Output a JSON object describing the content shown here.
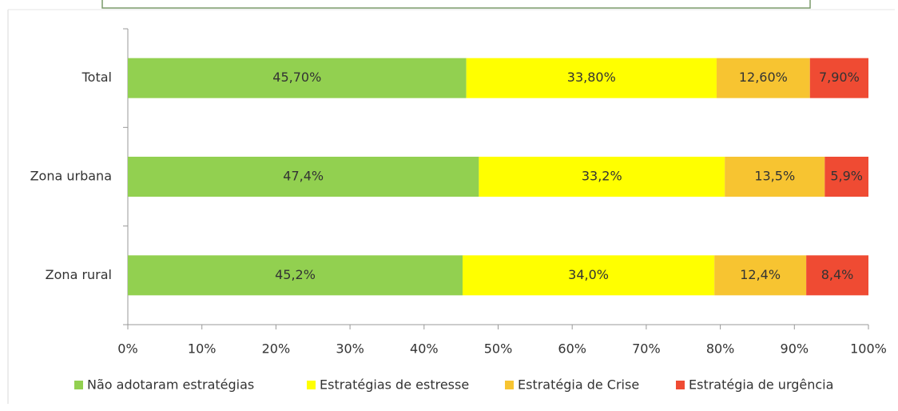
{
  "chart_data": {
    "type": "stacked-bar-horizontal",
    "categories": [
      "Total",
      "Zona urbana",
      "Zona rural"
    ],
    "series": [
      {
        "name": "Não adotaram estratégias",
        "color": "#92d050",
        "values": [
          45.7,
          47.4,
          45.2
        ],
        "value_labels": [
          "45,70%",
          "47,4%",
          "45,2%"
        ]
      },
      {
        "name": "Estratégias de estresse",
        "color": "#ffff00",
        "values": [
          33.8,
          33.2,
          34.0
        ],
        "value_labels": [
          "33,80%",
          "33,2%",
          "34,0%"
        ]
      },
      {
        "name": "Estratégia de Crise",
        "color": "#f7c431",
        "values": [
          12.6,
          13.5,
          12.4
        ],
        "value_labels": [
          "12,60%",
          "13,5%",
          "12,4%"
        ]
      },
      {
        "name": "Estratégia de urgência",
        "color": "#ef4b33",
        "values": [
          7.9,
          5.9,
          8.4
        ],
        "value_labels": [
          "7,90%",
          "5,9%",
          "8,4%"
        ]
      }
    ],
    "xlim": [
      0,
      100
    ],
    "xticks": [
      {
        "value": 0,
        "label": "0%"
      },
      {
        "value": 10,
        "label": "10%"
      },
      {
        "value": 20,
        "label": "20%"
      },
      {
        "value": 30,
        "label": "30%"
      },
      {
        "value": 40,
        "label": "40%"
      },
      {
        "value": 50,
        "label": "50%"
      },
      {
        "value": 60,
        "label": "60%"
      },
      {
        "value": 70,
        "label": "70%"
      },
      {
        "value": 80,
        "label": "80%"
      },
      {
        "value": 90,
        "label": "90%"
      },
      {
        "value": 100,
        "label": "100%"
      }
    ],
    "legend": "bottom"
  }
}
